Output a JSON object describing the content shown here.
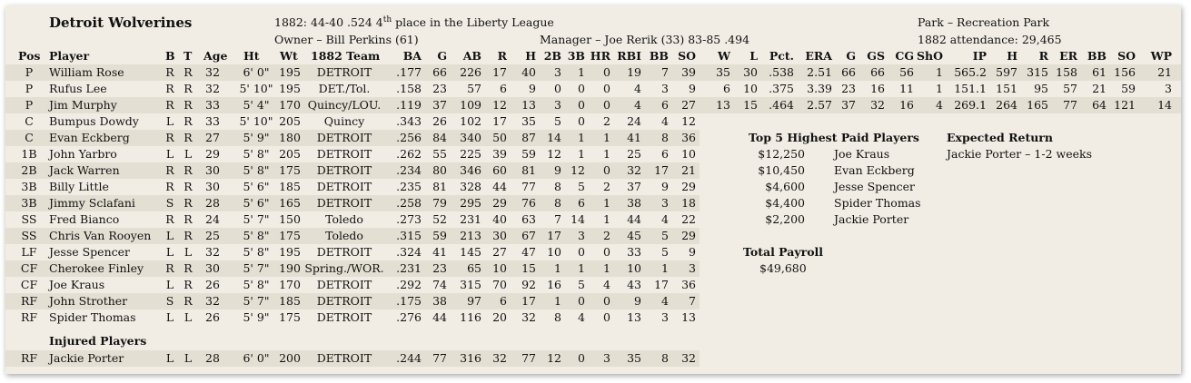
{
  "team": {
    "name": "Detroit Wolverines",
    "record_prefix": "1882: 44-40  .524  4",
    "record_sup": "th",
    "record_suffix": " place in the Liberty League",
    "owner": "Owner – Bill Perkins (61)",
    "manager": "Manager – Joe Rerik (33)  83-85  .494",
    "park": "Park – Recreation Park",
    "attendance": "1882 attendance:  29,465"
  },
  "columns": {
    "pos": "Pos",
    "player": "Player",
    "b": "B",
    "t": "T",
    "age": "Age",
    "ht": "Ht",
    "wt": "Wt",
    "team": "1882 Team",
    "ba": "BA",
    "g": "G",
    "ab": "AB",
    "r": "R",
    "h": "H",
    "d": "2B",
    "tr": "3B",
    "hr": "HR",
    "rbi": "RBI",
    "bb": "BB",
    "so": "SO",
    "pw": "W",
    "pl": "L",
    "pct": "Pct.",
    "era": "ERA",
    "pg": "G",
    "gs": "GS",
    "cg": "CG",
    "sho": "ShO",
    "ip": "IP",
    "ph": "H",
    "pr": "R",
    "er": "ER",
    "pbb": "BB",
    "pso": "SO",
    "wp": "WP"
  },
  "players": [
    {
      "pos": "P",
      "name": "William Rose",
      "b": "R",
      "t": "R",
      "age": "32",
      "ht": "6' 0\"",
      "wt": "195",
      "team": "DETROIT",
      "ba": ".177",
      "g": "66",
      "ab": "226",
      "r": "17",
      "h": "40",
      "d": "3",
      "tr": "1",
      "hr": "0",
      "rbi": "19",
      "bb": "7",
      "so": "39",
      "pitching": {
        "w": "35",
        "l": "30",
        "pct": ".538",
        "era": "2.51",
        "g": "66",
        "gs": "66",
        "cg": "56",
        "sho": "1",
        "ip": "565.2",
        "h": "597",
        "r": "315",
        "er": "158",
        "bb": "61",
        "so": "156",
        "wp": "21"
      }
    },
    {
      "pos": "P",
      "name": "Rufus Lee",
      "b": "R",
      "t": "R",
      "age": "32",
      "ht": "5' 10\"",
      "wt": "195",
      "team": "DET./Tol.",
      "ba": ".158",
      "g": "23",
      "ab": "57",
      "r": "6",
      "h": "9",
      "d": "0",
      "tr": "0",
      "hr": "0",
      "rbi": "4",
      "bb": "3",
      "so": "9",
      "pitching": {
        "w": "6",
        "l": "10",
        "pct": ".375",
        "era": "3.39",
        "g": "23",
        "gs": "16",
        "cg": "11",
        "sho": "1",
        "ip": "151.1",
        "h": "151",
        "r": "95",
        "er": "57",
        "bb": "21",
        "so": "59",
        "wp": "3"
      }
    },
    {
      "pos": "P",
      "name": "Jim Murphy",
      "b": "R",
      "t": "R",
      "age": "33",
      "ht": "5' 4\"",
      "wt": "170",
      "team": "Quincy/LOU.",
      "ba": ".119",
      "g": "37",
      "ab": "109",
      "r": "12",
      "h": "13",
      "d": "3",
      "tr": "0",
      "hr": "0",
      "rbi": "4",
      "bb": "6",
      "so": "27",
      "pitching": {
        "w": "13",
        "l": "15",
        "pct": ".464",
        "era": "2.57",
        "g": "37",
        "gs": "32",
        "cg": "16",
        "sho": "4",
        "ip": "269.1",
        "h": "264",
        "r": "165",
        "er": "77",
        "bb": "64",
        "so": "121",
        "wp": "14"
      }
    },
    {
      "pos": "C",
      "name": "Bumpus Dowdy",
      "b": "L",
      "t": "R",
      "age": "33",
      "ht": "5' 10\"",
      "wt": "205",
      "team": "Quincy",
      "ba": ".343",
      "g": "26",
      "ab": "102",
      "r": "17",
      "h": "35",
      "d": "5",
      "tr": "0",
      "hr": "2",
      "rbi": "24",
      "bb": "4",
      "so": "12"
    },
    {
      "pos": "C",
      "name": "Evan Eckberg",
      "b": "R",
      "t": "R",
      "age": "27",
      "ht": "5' 9\"",
      "wt": "180",
      "team": "DETROIT",
      "ba": ".256",
      "g": "84",
      "ab": "340",
      "r": "50",
      "h": "87",
      "d": "14",
      "tr": "1",
      "hr": "1",
      "rbi": "41",
      "bb": "8",
      "so": "36"
    },
    {
      "pos": "1B",
      "name": "John Yarbro",
      "b": "L",
      "t": "L",
      "age": "29",
      "ht": "5' 8\"",
      "wt": "205",
      "team": "DETROIT",
      "ba": ".262",
      "g": "55",
      "ab": "225",
      "r": "39",
      "h": "59",
      "d": "12",
      "tr": "1",
      "hr": "1",
      "rbi": "25",
      "bb": "6",
      "so": "10"
    },
    {
      "pos": "2B",
      "name": "Jack Warren",
      "b": "R",
      "t": "R",
      "age": "30",
      "ht": "5' 8\"",
      "wt": "175",
      "team": "DETROIT",
      "ba": ".234",
      "g": "80",
      "ab": "346",
      "r": "60",
      "h": "81",
      "d": "9",
      "tr": "12",
      "hr": "0",
      "rbi": "32",
      "bb": "17",
      "so": "21"
    },
    {
      "pos": "3B",
      "name": "Billy Little",
      "b": "R",
      "t": "R",
      "age": "30",
      "ht": "5' 6\"",
      "wt": "185",
      "team": "DETROIT",
      "ba": ".235",
      "g": "81",
      "ab": "328",
      "r": "44",
      "h": "77",
      "d": "8",
      "tr": "5",
      "hr": "2",
      "rbi": "37",
      "bb": "9",
      "so": "29"
    },
    {
      "pos": "3B",
      "name": "Jimmy Sclafani",
      "b": "S",
      "t": "R",
      "age": "28",
      "ht": "5' 6\"",
      "wt": "165",
      "team": "DETROIT",
      "ba": ".258",
      "g": "79",
      "ab": "295",
      "r": "29",
      "h": "76",
      "d": "8",
      "tr": "6",
      "hr": "1",
      "rbi": "38",
      "bb": "3",
      "so": "18"
    },
    {
      "pos": "SS",
      "name": "Fred Bianco",
      "b": "R",
      "t": "R",
      "age": "24",
      "ht": "5' 7\"",
      "wt": "150",
      "team": "Toledo",
      "ba": ".273",
      "g": "52",
      "ab": "231",
      "r": "40",
      "h": "63",
      "d": "7",
      "tr": "14",
      "hr": "1",
      "rbi": "44",
      "bb": "4",
      "so": "22"
    },
    {
      "pos": "SS",
      "name": "Chris Van Rooyen",
      "b": "L",
      "t": "R",
      "age": "25",
      "ht": "5' 8\"",
      "wt": "175",
      "team": "Toledo",
      "ba": ".315",
      "g": "59",
      "ab": "213",
      "r": "30",
      "h": "67",
      "d": "17",
      "tr": "3",
      "hr": "2",
      "rbi": "45",
      "bb": "5",
      "so": "29"
    },
    {
      "pos": "LF",
      "name": "Jesse Spencer",
      "b": "L",
      "t": "L",
      "age": "32",
      "ht": "5' 8\"",
      "wt": "195",
      "team": "DETROIT",
      "ba": ".324",
      "g": "41",
      "ab": "145",
      "r": "27",
      "h": "47",
      "d": "10",
      "tr": "0",
      "hr": "0",
      "rbi": "33",
      "bb": "5",
      "so": "9"
    },
    {
      "pos": "CF",
      "name": "Cherokee Finley",
      "b": "R",
      "t": "R",
      "age": "30",
      "ht": "5' 7\"",
      "wt": "190",
      "team": "Spring./WOR.",
      "ba": ".231",
      "g": "23",
      "ab": "65",
      "r": "10",
      "h": "15",
      "d": "1",
      "tr": "1",
      "hr": "1",
      "rbi": "10",
      "bb": "1",
      "so": "3"
    },
    {
      "pos": "CF",
      "name": "Joe Kraus",
      "b": "L",
      "t": "R",
      "age": "26",
      "ht": "5' 8\"",
      "wt": "170",
      "team": "DETROIT",
      "ba": ".292",
      "g": "74",
      "ab": "315",
      "r": "70",
      "h": "92",
      "d": "16",
      "tr": "5",
      "hr": "4",
      "rbi": "43",
      "bb": "17",
      "so": "36"
    },
    {
      "pos": "RF",
      "name": "John Strother",
      "b": "S",
      "t": "R",
      "age": "32",
      "ht": "5' 7\"",
      "wt": "185",
      "team": "DETROIT",
      "ba": ".175",
      "g": "38",
      "ab": "97",
      "r": "6",
      "h": "17",
      "d": "1",
      "tr": "0",
      "hr": "0",
      "rbi": "9",
      "bb": "4",
      "so": "7"
    },
    {
      "pos": "RF",
      "name": "Spider Thomas",
      "b": "L",
      "t": "L",
      "age": "26",
      "ht": "5' 9\"",
      "wt": "175",
      "team": "DETROIT",
      "ba": ".276",
      "g": "44",
      "ab": "116",
      "r": "20",
      "h": "32",
      "d": "8",
      "tr": "4",
      "hr": "0",
      "rbi": "13",
      "bb": "3",
      "so": "13"
    }
  ],
  "injured": {
    "title": "Injured Players",
    "players": [
      {
        "pos": "RF",
        "name": "Jackie Porter",
        "b": "L",
        "t": "L",
        "age": "28",
        "ht": "6' 0\"",
        "wt": "200",
        "team": "DETROIT",
        "ba": ".244",
        "g": "77",
        "ab": "316",
        "r": "32",
        "h": "77",
        "d": "12",
        "tr": "0",
        "hr": "3",
        "rbi": "35",
        "bb": "8",
        "so": "32"
      }
    ]
  },
  "top_paid": {
    "title": "Top 5 Highest Paid Players",
    "players": [
      {
        "salary": "$12,250",
        "name": "Joe Kraus"
      },
      {
        "salary": "$10,450",
        "name": "Evan Eckberg"
      },
      {
        "salary": "$4,600",
        "name": "Jesse Spencer"
      },
      {
        "salary": "$4,400",
        "name": "Spider Thomas"
      },
      {
        "salary": "$2,200",
        "name": "Jackie Porter"
      }
    ]
  },
  "expected_return": {
    "title": "Expected Return",
    "items": [
      "Jackie Porter – 1-2 weeks"
    ]
  },
  "payroll": {
    "title": "Total Payroll",
    "value": "$49,680"
  }
}
